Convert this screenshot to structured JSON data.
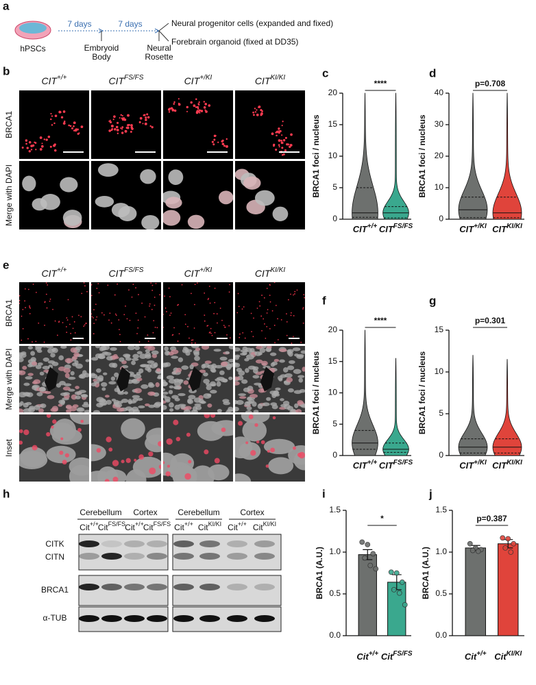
{
  "panel_a": {
    "label": "a",
    "start": "hPSCs",
    "steps": [
      "7 days",
      "7 days"
    ],
    "stages": [
      [
        "Embryoid",
        "Body"
      ],
      [
        "Neural",
        "Rosette"
      ]
    ],
    "outcomes": [
      "Neural progenitor cells (expanded and fixed)",
      "Forebrain organoid (fixed at DD35)"
    ]
  },
  "panel_b": {
    "label": "b",
    "columns": [
      {
        "base": "CIT",
        "sup": "+/+"
      },
      {
        "base": "CIT",
        "sup": "FS/FS"
      },
      {
        "base": "CIT",
        "sup": "+/KI"
      },
      {
        "base": "CIT",
        "sup": "KI/KI"
      }
    ],
    "rows": [
      "BRCA1",
      "Merge with DAPI"
    ]
  },
  "panel_e": {
    "label": "e",
    "columns": [
      {
        "base": "CIT",
        "sup": "+/+"
      },
      {
        "base": "CIT",
        "sup": "FS/FS"
      },
      {
        "base": "CIT",
        "sup": "+/KI"
      },
      {
        "base": "CIT",
        "sup": "KI/KI"
      }
    ],
    "rows": [
      "BRCA1",
      "Merge with DAPI",
      "Inset"
    ]
  },
  "panel_h": {
    "label": "h",
    "tissues": [
      "Cerebellum",
      "Cortex",
      "Cerebellum",
      "Cortex"
    ],
    "lanes": [
      {
        "base": "Cit",
        "sup": "+/+"
      },
      {
        "base": "Cit",
        "sup": "FS/FS"
      },
      {
        "base": "Cit",
        "sup": "+/+"
      },
      {
        "base": "Cit",
        "sup": "FS/FS"
      },
      {
        "base": "Cit",
        "sup": "+/+"
      },
      {
        "base": "Cit",
        "sup": "KI/KI"
      },
      {
        "base": "Cit",
        "sup": "+/+"
      },
      {
        "base": "Cit",
        "sup": "KI/KI"
      }
    ],
    "bands": [
      "CITK",
      "CITN",
      "BRCA1",
      "α-TUB"
    ]
  },
  "chart_data": [
    {
      "type": "violin",
      "panel_label": "c",
      "y_label": "BRCA1 foci / nucleus",
      "ylim": [
        0,
        20
      ],
      "yticks": [
        0,
        5,
        10,
        15,
        20
      ],
      "categories": [
        {
          "base": "CIT",
          "sup": "+/+"
        },
        {
          "base": "CIT",
          "sup": "FS/FS"
        }
      ],
      "colors": [
        "#6d706e",
        "#3aa88e"
      ],
      "max": [
        20,
        20
      ],
      "q1": [
        0.3,
        0.2
      ],
      "median": [
        1,
        1
      ],
      "q3": [
        5,
        2
      ],
      "annotation": "****"
    },
    {
      "type": "violin",
      "panel_label": "d",
      "y_label": "BRCA1 foci / nucleus",
      "ylim": [
        0,
        40
      ],
      "yticks": [
        0,
        10,
        20,
        30,
        40
      ],
      "categories": [
        {
          "base": "CIT",
          "sup": "+/KI"
        },
        {
          "base": "CIT",
          "sup": "KI/KI"
        }
      ],
      "colors": [
        "#6d706e",
        "#e0443b"
      ],
      "max": [
        40,
        40
      ],
      "q1": [
        0.5,
        0.5
      ],
      "median": [
        3,
        2
      ],
      "q3": [
        7,
        7
      ],
      "annotation": "p=0.708"
    },
    {
      "type": "violin",
      "panel_label": "f",
      "y_label": "BRCA1 foci / nucleus",
      "ylim": [
        0,
        20
      ],
      "yticks": [
        0,
        5,
        10,
        15,
        20
      ],
      "categories": [
        {
          "base": "CIT",
          "sup": "+/+"
        },
        {
          "base": "CIT",
          "sup": "FS/FS"
        }
      ],
      "colors": [
        "#6d706e",
        "#3aa88e"
      ],
      "max": [
        20,
        15.5
      ],
      "q1": [
        1,
        0.5
      ],
      "median": [
        2,
        1
      ],
      "q3": [
        4,
        2
      ],
      "annotation": "****"
    },
    {
      "type": "violin",
      "panel_label": "g",
      "y_label": "BRCA1 foci / nucleus",
      "ylim": [
        0,
        15
      ],
      "yticks": [
        0,
        5,
        10,
        15
      ],
      "categories": [
        {
          "base": "CIT",
          "sup": "+/KI"
        },
        {
          "base": "CIT",
          "sup": "KI/KI"
        }
      ],
      "colors": [
        "#6d706e",
        "#e0443b"
      ],
      "max": [
        12,
        11.5
      ],
      "q1": [
        0.3,
        0.3
      ],
      "median": [
        1,
        1
      ],
      "q3": [
        2,
        2
      ],
      "annotation": "p=0.301"
    },
    {
      "type": "bar",
      "panel_label": "i",
      "y_label": "BRCA1 (A.U.)",
      "ylim": [
        0,
        1.5
      ],
      "yticks": [
        {
          "value": 0,
          "label": "0.0"
        },
        0.5,
        {
          "value": 1,
          "label": "1.0"
        },
        1.5
      ],
      "categories": [
        {
          "base": "Cit",
          "sup": "+/+"
        },
        {
          "base": "Cit",
          "sup": "FS/FS"
        }
      ],
      "colors": [
        "#6d706e",
        "#3aa88e"
      ],
      "values": [
        0.97,
        0.64
      ],
      "errors": [
        0.06,
        0.09
      ],
      "points": [
        [
          1.12,
          1.09,
          0.98,
          0.93,
          0.84,
          0.8
        ],
        [
          0.76,
          0.75,
          0.64,
          0.55,
          0.51,
          0.37
        ]
      ],
      "annotation": "*"
    },
    {
      "type": "bar",
      "panel_label": "j",
      "y_label": "BRCA1 (A.U.)",
      "ylim": [
        0,
        1.5
      ],
      "yticks": [
        {
          "value": 0,
          "label": "0.0"
        },
        0.5,
        {
          "value": 1,
          "label": "1.0"
        },
        1.5
      ],
      "categories": [
        {
          "base": "Cit",
          "sup": "+/+"
        },
        {
          "base": "Cit",
          "sup": "KI/KI"
        }
      ],
      "colors": [
        "#6d706e",
        "#e0443b"
      ],
      "values": [
        1.05,
        1.1
      ],
      "errors": [
        0.03,
        0.05
      ],
      "points": [
        [
          1.1,
          1.05,
          1.03,
          1.02,
          1.01
        ],
        [
          1.17,
          1.16,
          1.1,
          1.05,
          1.0
        ]
      ],
      "annotation": "p=0.387"
    }
  ]
}
